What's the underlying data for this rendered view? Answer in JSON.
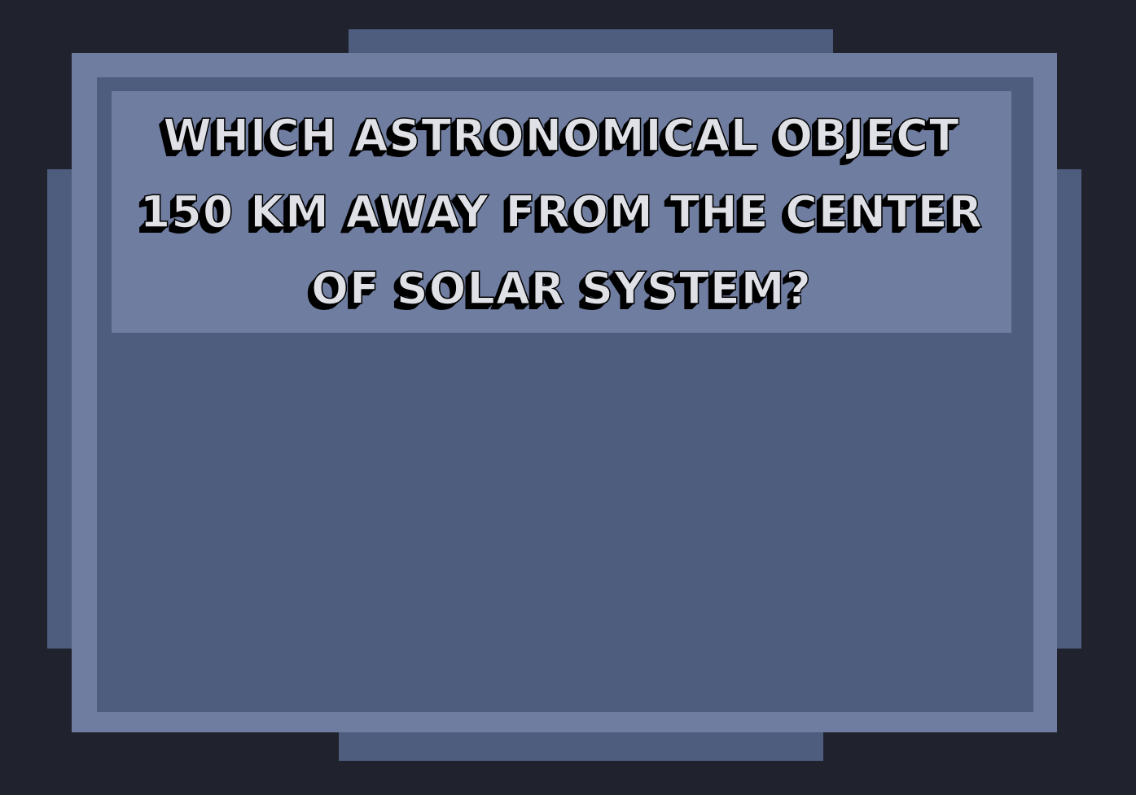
{
  "question": {
    "text": "WHICH ASTRONOMICAL OBJECT\n150 KM AWAY FROM THE CENTER\nOF SOLAR SYSTEM?"
  },
  "colors": {
    "background": "#20232e",
    "frame_light": "#6f7da0",
    "frame_dark": "#4e5c7e",
    "text_fill": "#dfe1e6",
    "text_shadow": "#000000"
  }
}
